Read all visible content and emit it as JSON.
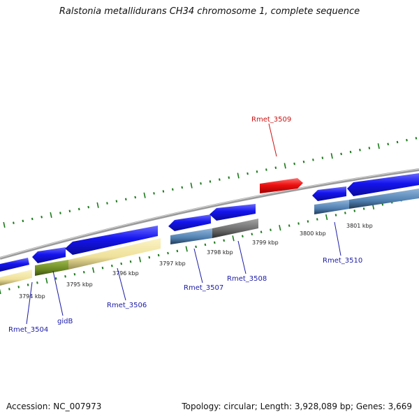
{
  "header": {
    "title": "Ralstonia metallidurans CH34 chromosome 1, complete sequence"
  },
  "footer": {
    "accession": "Accession: NC_007973",
    "summary": "Topology: circular; Length: 3,928,089 bp; Genes: 3,669"
  },
  "scale": {
    "tick_labels": [
      "3794 kbp",
      "3795 kbp",
      "3796 kbp",
      "3797 kbp",
      "3798 kbp",
      "3799 kbp",
      "3800 kbp",
      "3801 kbp"
    ]
  },
  "genes": [
    {
      "label": "Rmet_3504",
      "strand": "reverse",
      "color": "#1a1aa6"
    },
    {
      "label": "gidB",
      "strand": "reverse",
      "color": "#1a1aa6"
    },
    {
      "label": "Rmet_3506",
      "strand": "reverse",
      "color": "#1a1aa6"
    },
    {
      "label": "Rmet_3507",
      "strand": "reverse",
      "color": "#1a1aa6"
    },
    {
      "label": "Rmet_3508",
      "strand": "forward",
      "color": "#1a1aa6"
    },
    {
      "label": "Rmet_3509",
      "strand": "forward",
      "color": "#cc1111"
    },
    {
      "label": "Rmet_3510",
      "strand": "reverse",
      "color": "#1a1aa6"
    }
  ],
  "colors": {
    "cds_blue": "#1010e6",
    "gene_pale": "#f1e6a0",
    "gene_green": "#6e8e22",
    "gene_steel": "#4f7fb0",
    "gene_gray": "#6a6a6a",
    "gene_red": "#e01010",
    "backbone": "#8a8a8a",
    "tick_green": "#1a7a1a"
  }
}
